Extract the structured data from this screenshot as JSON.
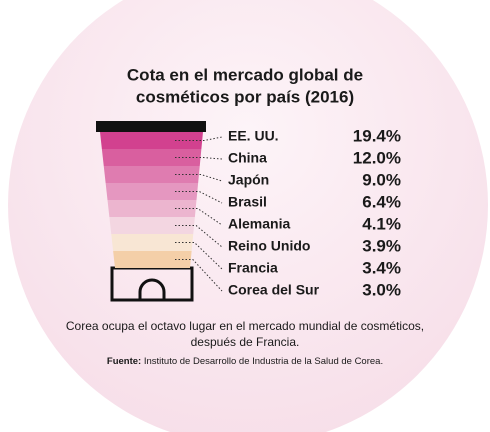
{
  "chart_data": {
    "type": "tube",
    "title": [
      "Cota en el mercado global de",
      "cosméticos por país (2016)"
    ],
    "categories": [
      "EE. UU.",
      "China",
      "Japón",
      "Brasil",
      "Alemania",
      "Reino Unido",
      "Francia",
      "Corea del Sur"
    ],
    "values": [
      19.4,
      12.0,
      9.0,
      6.4,
      4.1,
      3.9,
      3.4,
      3.0
    ],
    "value_labels": [
      "19.4%",
      "12.0%",
      "9.0%",
      "6.4%",
      "4.1%",
      "3.9%",
      "3.4%",
      "3.0%"
    ],
    "colors": [
      "#d2418f",
      "#d95f9f",
      "#df7cb0",
      "#e597c0",
      "#ecb5cf",
      "#f3d6e1",
      "#f8e6d4",
      "#f4cfa8"
    ],
    "note": [
      "Corea ocupa el octavo lugar en el mercado mundial de cosméticos,",
      "después de Francia."
    ],
    "source": {
      "label": "Fuente:",
      "text": "Instituto de Desarrollo de Industria de la Salud de Corea."
    }
  }
}
